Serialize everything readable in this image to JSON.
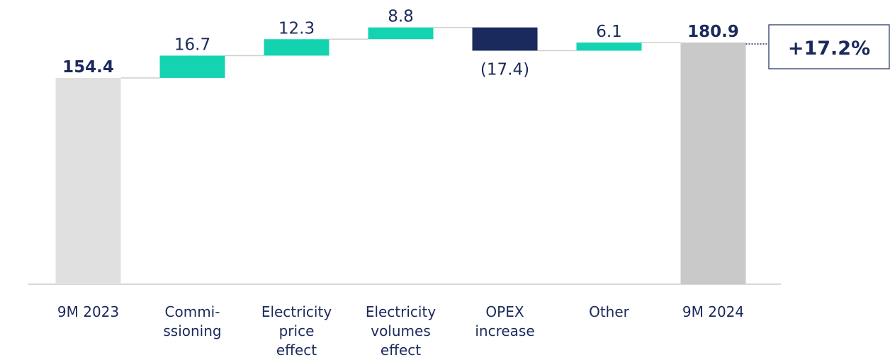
{
  "chart_data": {
    "type": "waterfall",
    "categories": [
      [
        "9M 2023"
      ],
      [
        "Commi-",
        "ssioning"
      ],
      [
        "Electricity",
        "price",
        "effect"
      ],
      [
        "Electricity",
        "volumes",
        "effect"
      ],
      [
        "OPEX",
        "increase"
      ],
      [
        "Other"
      ],
      [
        "9M 2024"
      ]
    ],
    "values": [
      154.4,
      16.7,
      12.3,
      8.8,
      -17.4,
      6.1,
      180.9
    ],
    "value_labels": [
      "154.4",
      "16.7",
      "12.3",
      "8.8",
      "(17.4)",
      "6.1",
      "180.9"
    ],
    "kinds": [
      "total",
      "delta",
      "delta",
      "delta",
      "delta",
      "delta",
      "total"
    ],
    "colors": [
      "#e0e0e0",
      "#14d3b1",
      "#14d3b1",
      "#14d3b1",
      "#1b2a5c",
      "#14d3b1",
      "#c9c9c9"
    ],
    "ylim": [
      0,
      200
    ],
    "annotation": "+17.2%"
  }
}
